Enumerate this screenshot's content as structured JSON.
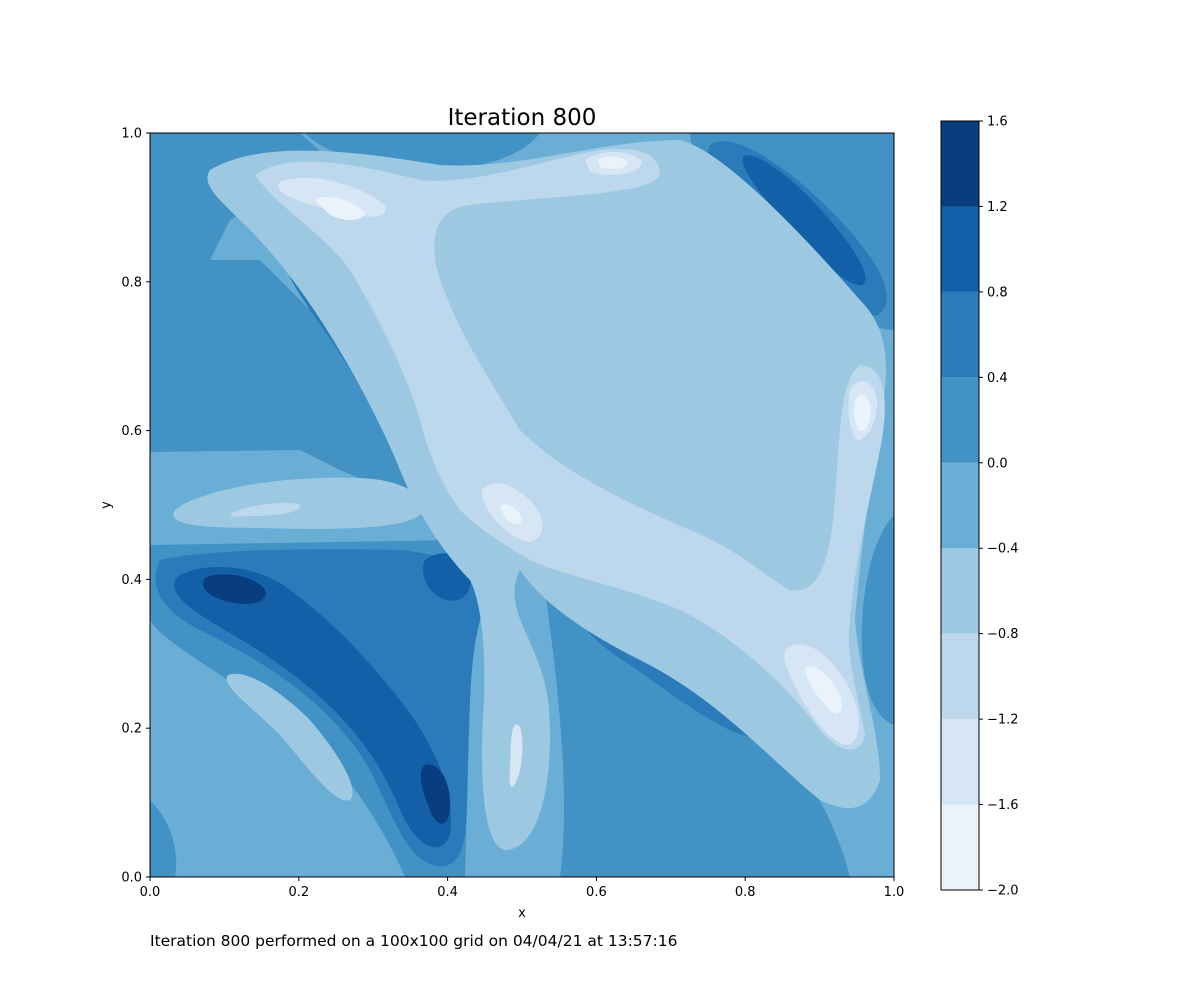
{
  "chart_data": {
    "type": "contourf",
    "title": "Iteration 800",
    "xlabel": "x",
    "ylabel": "y",
    "xlim": [
      0.0,
      1.0
    ],
    "ylim": [
      0.0,
      1.0
    ],
    "x_ticks": [
      "0.0",
      "0.2",
      "0.4",
      "0.6",
      "0.8",
      "1.0"
    ],
    "y_ticks": [
      "0.0",
      "0.2",
      "0.4",
      "0.6",
      "0.8",
      "1.0"
    ],
    "colormap": "Blues",
    "colorbar": {
      "levels": [
        -2.0,
        -1.6,
        -1.2,
        -0.8,
        -0.4,
        0.0,
        0.4,
        0.8,
        1.2,
        1.6
      ],
      "tick_labels": [
        "−2.0",
        "−1.6",
        "−1.2",
        "−0.8",
        "−0.4",
        "0.0",
        "0.4",
        "0.8",
        "1.2",
        "1.6"
      ],
      "colors": [
        "#eaf2fb",
        "#d6e6f4",
        "#bdd7ec",
        "#9cc8e1",
        "#6aaed6",
        "#4292c6",
        "#2b7bba",
        "#1460a8",
        "#083d7f"
      ]
    },
    "grid": false,
    "features": [
      {
        "kind": "high",
        "x": 0.13,
        "y": 0.39,
        "level": 1.4
      },
      {
        "kind": "high",
        "x": 0.38,
        "y": 0.11,
        "level": 1.4
      },
      {
        "kind": "high",
        "x": 0.41,
        "y": 0.41,
        "level": 1.0
      },
      {
        "kind": "high",
        "x": 0.87,
        "y": 0.87,
        "level": 1.0
      },
      {
        "kind": "low",
        "x": 0.25,
        "y": 0.89,
        "level": -1.8
      },
      {
        "kind": "low",
        "x": 0.62,
        "y": 0.96,
        "level": -1.8
      },
      {
        "kind": "low",
        "x": 0.48,
        "y": 0.49,
        "level": -1.8
      },
      {
        "kind": "low",
        "x": 0.96,
        "y": 0.62,
        "level": -1.8
      },
      {
        "kind": "low",
        "x": 0.9,
        "y": 0.25,
        "level": -1.8
      },
      {
        "kind": "low",
        "x": 0.2,
        "y": 0.49,
        "level": -1.2
      }
    ]
  },
  "caption": "Iteration 800 performed on a 100x100 grid on 04/04/21 at 13:57:16"
}
